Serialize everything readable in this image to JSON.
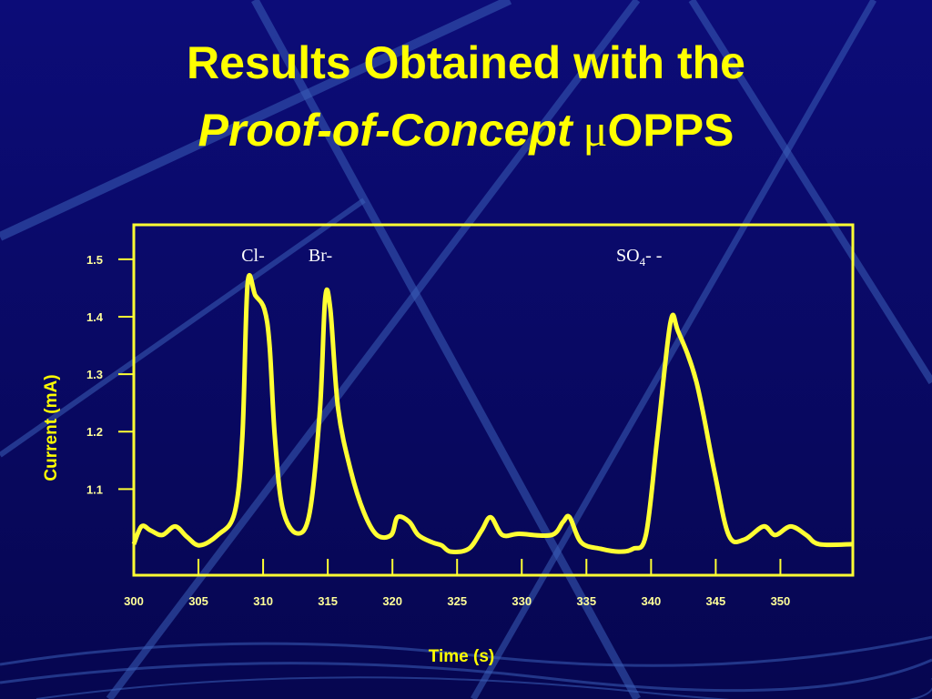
{
  "header": {
    "title_line1": "Results Obtained with the",
    "title_line2_italic": "Proof-of-Concept",
    "title_line2_mu": "μ",
    "title_line2_rest": "OPPS"
  },
  "chart_data": {
    "type": "line",
    "x_label": "Time (s)",
    "y_label": "Current (mA)",
    "annotations": {
      "peak1": "Cl-",
      "peak2": "Br-",
      "peak3_base": "SO",
      "peak3_sub": "4",
      "peak3_suffix": "- -"
    },
    "xlim": [
      300,
      355.6
    ],
    "ylim": [
      0.95,
      1.56
    ],
    "xticks": [
      300,
      305,
      310,
      315,
      320,
      325,
      330,
      335,
      340,
      345,
      350
    ],
    "yticks": [
      1.1,
      1.2,
      1.3,
      1.4,
      1.5
    ],
    "series": [
      {
        "color": "#ffff33",
        "x": [
          300,
          300.6,
          301.3,
          302.2,
          303.2,
          304.1,
          305.1,
          306.5,
          307.8,
          308.4,
          308.8,
          309.4,
          310.1,
          310.5,
          310.9,
          311.5,
          312.6,
          313.6,
          314.4,
          314.8,
          315.2,
          315.8,
          316.8,
          317.8,
          318.8,
          319.9,
          320.4,
          321.3,
          322.0,
          323.1,
          323.8,
          324.5,
          325.9,
          326.9,
          327.6,
          328.5,
          329.8,
          332.3,
          333.2,
          333.7,
          334.6,
          336.1,
          337.5,
          338.6,
          339.6,
          340.5,
          341.5,
          342.1,
          343.5,
          344.9,
          346.0,
          347.2,
          348.7,
          349.6,
          350.8,
          352.0,
          353.0,
          355.6
        ],
        "values": [
          1.004,
          1.035,
          1.028,
          1.02,
          1.035,
          1.017,
          1.002,
          1.02,
          1.059,
          1.193,
          1.457,
          1.437,
          1.413,
          1.35,
          1.193,
          1.067,
          1.023,
          1.059,
          1.24,
          1.432,
          1.413,
          1.24,
          1.13,
          1.059,
          1.02,
          1.02,
          1.051,
          1.043,
          1.02,
          1.007,
          1.002,
          0.991,
          0.996,
          1.028,
          1.051,
          1.02,
          1.022,
          1.02,
          1.043,
          1.051,
          1.007,
          0.996,
          0.991,
          0.996,
          1.02,
          1.193,
          1.39,
          1.374,
          1.287,
          1.13,
          1.02,
          1.012,
          1.035,
          1.02,
          1.035,
          1.02,
          1.004,
          1.004
        ]
      }
    ]
  }
}
